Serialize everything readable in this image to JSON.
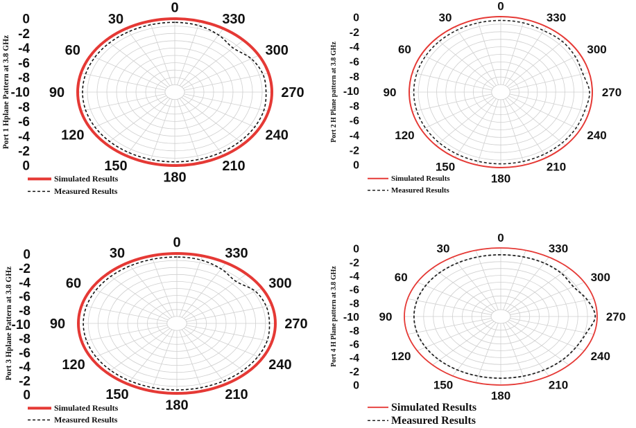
{
  "chart_data": [
    {
      "type": "polar",
      "title": "",
      "ylabel": "Port 1 Hplane Pattern at 3.8 GHz",
      "r_ticks": [
        "0",
        "-2",
        "-4",
        "-6",
        "-8",
        "-10",
        "-8",
        "-6",
        "-4",
        "-2",
        "0"
      ],
      "angle_labels": [
        "0",
        "30",
        "60",
        "90",
        "120",
        "150",
        "180",
        "210",
        "240",
        "270",
        "300",
        "330"
      ],
      "rlim": [
        -10,
        0
      ],
      "legend": [
        "Simulated Results",
        "Measured Results"
      ],
      "series": [
        {
          "name": "Simulated Results",
          "style": "solid",
          "color": "#e53935",
          "angles": [
            0,
            30,
            60,
            90,
            120,
            150,
            180,
            210,
            240,
            270,
            300,
            330
          ],
          "values": [
            0,
            0,
            0,
            0,
            0,
            0,
            0,
            0,
            0,
            0,
            0,
            0
          ]
        },
        {
          "name": "Measured Results",
          "style": "dashed",
          "color": "#111111",
          "angles": [
            0,
            15,
            30,
            45,
            60,
            75,
            90,
            105,
            120,
            135,
            150,
            165,
            180,
            195,
            210,
            225,
            240,
            255,
            270,
            285,
            300,
            315,
            330,
            345
          ],
          "values": [
            -0.5,
            -0.5,
            -0.5,
            -0.5,
            -0.5,
            -0.5,
            -0.5,
            -0.5,
            -0.5,
            -0.5,
            -0.5,
            -0.5,
            -0.5,
            -0.5,
            -0.5,
            -0.5,
            -0.5,
            -0.5,
            -0.6,
            -0.6,
            -0.9,
            -1.5,
            -1.0,
            -0.6
          ]
        }
      ]
    },
    {
      "type": "polar",
      "title": "",
      "ylabel": "Port 2 H Plane pattern at 3.8 GHz",
      "r_ticks": [
        "0",
        "-2",
        "-4",
        "-6",
        "-8",
        "-10",
        "-8",
        "-6",
        "-4",
        "-2",
        "0"
      ],
      "angle_labels": [
        "0",
        "30",
        "60",
        "90",
        "120",
        "150",
        "180",
        "210",
        "240",
        "270",
        "300",
        "330"
      ],
      "rlim": [
        -10,
        0
      ],
      "legend": [
        "Simulated Results",
        "Measured Results"
      ],
      "series": [
        {
          "name": "Simulated Results",
          "style": "solid",
          "color": "#e53935",
          "angles": [
            0,
            30,
            60,
            90,
            120,
            150,
            180,
            210,
            240,
            270,
            300,
            330
          ],
          "values": [
            0,
            0,
            0,
            0,
            0,
            0,
            0,
            0,
            0,
            0,
            0,
            0
          ]
        },
        {
          "name": "Measured Results",
          "style": "dashed",
          "color": "#222222",
          "angles": [
            0,
            15,
            30,
            45,
            60,
            75,
            90,
            105,
            120,
            135,
            150,
            165,
            180,
            195,
            210,
            225,
            240,
            255,
            270,
            285,
            300,
            315,
            330,
            345
          ],
          "values": [
            -0.5,
            -0.5,
            -0.5,
            -0.5,
            -0.5,
            -0.5,
            -0.5,
            -0.5,
            -0.5,
            -0.5,
            -0.5,
            -0.5,
            -0.5,
            -0.5,
            -0.5,
            -0.5,
            -0.5,
            -0.5,
            -0.3,
            -0.7,
            -0.6,
            -0.5,
            -0.6,
            -0.5
          ]
        }
      ]
    },
    {
      "type": "polar",
      "title": "",
      "ylabel": "Port 3 Hplane Pattern at 3.8 GHz",
      "r_ticks": [
        "0",
        "-2",
        "-4",
        "-6",
        "-8",
        "-10",
        "-8",
        "-6",
        "-4",
        "-2",
        "0"
      ],
      "angle_labels": [
        "0",
        "30",
        "60",
        "90",
        "120",
        "150",
        "180",
        "210",
        "240",
        "270",
        "300",
        "330"
      ],
      "rlim": [
        -10,
        0
      ],
      "legend": [
        "Simulated Results",
        "Measured Results"
      ],
      "series": [
        {
          "name": "Simulated Results",
          "style": "solid",
          "color": "#e53935",
          "angles": [
            0,
            30,
            60,
            90,
            120,
            150,
            180,
            210,
            240,
            270,
            300,
            330
          ],
          "values": [
            0,
            0,
            0,
            0,
            0,
            0,
            0,
            0,
            0,
            0,
            0,
            0
          ]
        },
        {
          "name": "Measured Results",
          "style": "dashed",
          "color": "#111111",
          "angles": [
            0,
            15,
            30,
            45,
            60,
            75,
            90,
            105,
            120,
            135,
            150,
            165,
            180,
            195,
            210,
            225,
            240,
            255,
            270,
            285,
            300,
            315,
            330,
            345
          ],
          "values": [
            -0.5,
            -0.5,
            -0.5,
            -0.5,
            -0.5,
            -0.5,
            -0.5,
            -0.5,
            -0.5,
            -0.5,
            -0.5,
            -0.5,
            -0.5,
            -0.5,
            -0.5,
            -0.5,
            -0.5,
            -0.5,
            -0.6,
            -0.6,
            -0.8,
            -1.5,
            -1.0,
            -0.6
          ]
        }
      ]
    },
    {
      "type": "polar",
      "title": "",
      "ylabel": "Port 4 H Plane pattern at 3.8 GHz",
      "r_ticks": [
        "0",
        "-2",
        "-4",
        "-6",
        "-8",
        "-10",
        "-8",
        "-6",
        "-4",
        "-2",
        "0"
      ],
      "angle_labels": [
        "0",
        "30",
        "60",
        "90",
        "120",
        "150",
        "180",
        "210",
        "240",
        "270",
        "300",
        "330"
      ],
      "rlim": [
        -10,
        0
      ],
      "legend": [
        "Simulated Results",
        "Measured Results"
      ],
      "series": [
        {
          "name": "Simulated Results",
          "style": "solid",
          "color": "#e53935",
          "angles": [
            0,
            30,
            60,
            90,
            120,
            150,
            180,
            210,
            240,
            270,
            300,
            330
          ],
          "values": [
            0,
            0,
            0,
            0,
            0,
            0,
            0,
            0,
            0,
            0,
            0,
            0
          ]
        },
        {
          "name": "Measured Results",
          "style": "dashed",
          "color": "#222222",
          "angles": [
            0,
            15,
            30,
            45,
            60,
            75,
            90,
            105,
            120,
            135,
            150,
            165,
            180,
            195,
            210,
            225,
            240,
            255,
            270,
            285,
            300,
            315,
            330,
            345
          ],
          "values": [
            -1.0,
            -1.0,
            -1.0,
            -1.0,
            -1.0,
            -1.0,
            -1.0,
            -1.0,
            -1.0,
            -1.0,
            -1.0,
            -1.0,
            -1.0,
            -1.0,
            -1.0,
            -1.0,
            -1.0,
            -0.8,
            -0.2,
            -0.7,
            -1.3,
            -1.1,
            -1.0,
            -1.0
          ]
        }
      ]
    }
  ]
}
